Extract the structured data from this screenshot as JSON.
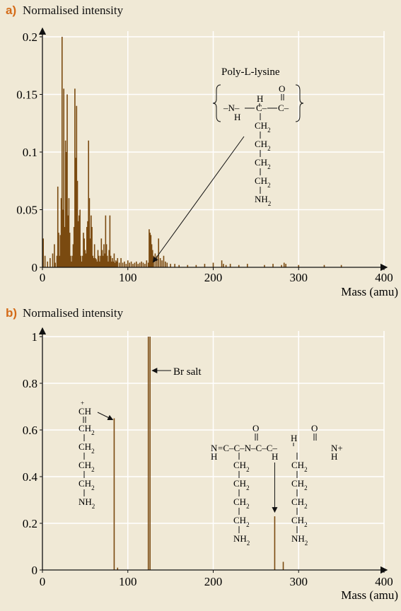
{
  "colors": {
    "background": "#f0e9d6",
    "bar": "#7a4a10",
    "gridline": "#ffffff",
    "panel_label": "#d46a17",
    "axis": "#111111"
  },
  "chart_data": [
    {
      "type": "bar",
      "panel_label": "a)",
      "title": "",
      "ylabel": "Normalised intensity",
      "xlabel": "Mass (amu)",
      "xlim": [
        0,
        400
      ],
      "ylim": [
        0,
        0.2
      ],
      "xticks": [
        "0",
        "100",
        "200",
        "300",
        "400"
      ],
      "yticks": [
        "0",
        "0.05",
        "0.1",
        "0.15",
        "0.2"
      ],
      "grid": true,
      "x": [
        1,
        3,
        6,
        9,
        12,
        14,
        15,
        17,
        18,
        19,
        20,
        21,
        22,
        23,
        24,
        25,
        26,
        27,
        28,
        29,
        30,
        31,
        32,
        33,
        34,
        35,
        36,
        37,
        38,
        39,
        40,
        41,
        42,
        43,
        44,
        45,
        46,
        47,
        48,
        49,
        50,
        51,
        52,
        53,
        54,
        55,
        56,
        57,
        58,
        59,
        60,
        61,
        62,
        63,
        64,
        65,
        66,
        67,
        68,
        69,
        70,
        71,
        72,
        73,
        74,
        75,
        76,
        77,
        78,
        79,
        80,
        81,
        82,
        83,
        84,
        85,
        86,
        87,
        88,
        90,
        92,
        94,
        96,
        98,
        100,
        102,
        104,
        106,
        108,
        110,
        112,
        114,
        116,
        118,
        120,
        122,
        124,
        125,
        126,
        127,
        128,
        129,
        130,
        132,
        134,
        136,
        138,
        140,
        142,
        144,
        146,
        150,
        155,
        160,
        170,
        180,
        190,
        200,
        210,
        212,
        215,
        220,
        230,
        240,
        260,
        270,
        280,
        283,
        285,
        300,
        330,
        350
      ],
      "values": [
        0.025,
        0.01,
        0.005,
        0.008,
        0.012,
        0.02,
        0.004,
        0.01,
        0.07,
        0.03,
        0.01,
        0.028,
        0.06,
        0.2,
        0.05,
        0.155,
        0.035,
        0.11,
        0.1,
        0.15,
        0.045,
        0.06,
        0.03,
        0.01,
        0.005,
        0.01,
        0.02,
        0.035,
        0.155,
        0.095,
        0.14,
        0.075,
        0.04,
        0.045,
        0.05,
        0.01,
        0.005,
        0.01,
        0.03,
        0.025,
        0.015,
        0.012,
        0.035,
        0.04,
        0.11,
        0.06,
        0.025,
        0.045,
        0.035,
        0.01,
        0.008,
        0.02,
        0.008,
        0.007,
        0.005,
        0.015,
        0.01,
        0.005,
        0.01,
        0.025,
        0.015,
        0.01,
        0.02,
        0.012,
        0.045,
        0.02,
        0.01,
        0.005,
        0.015,
        0.045,
        0.01,
        0.005,
        0.008,
        0.005,
        0.012,
        0.004,
        0.006,
        0.005,
        0.008,
        0.004,
        0.008,
        0.004,
        0.005,
        0.003,
        0.006,
        0.004,
        0.005,
        0.003,
        0.004,
        0.005,
        0.003,
        0.004,
        0.005,
        0.004,
        0.003,
        0.006,
        0.004,
        0.033,
        0.03,
        0.028,
        0.02,
        0.015,
        0.01,
        0.012,
        0.01,
        0.025,
        0.008,
        0.006,
        0.01,
        0.005,
        0.004,
        0.003,
        0.003,
        0.002,
        0.002,
        0.002,
        0.003,
        0.004,
        0.006,
        0.003,
        0.002,
        0.003,
        0.002,
        0.003,
        0.002,
        0.003,
        0.002,
        0.004,
        0.003,
        0.002,
        0.002,
        0.002
      ],
      "annotations": [
        {
          "text": "Poly-L-lysine",
          "target_x": 127,
          "target_y": 0.002
        }
      ],
      "structure_text": {
        "name": "Poly-L-lysine",
        "o": "O",
        "h": "H",
        "backbone_n": "–N–",
        "backbone_c": "C–",
        "carbonyl_c": "C–",
        "nh_h": "H",
        "ch2": "CH2",
        "nh2": "NH2"
      }
    },
    {
      "type": "bar",
      "panel_label": "b)",
      "title": "",
      "ylabel": "Normalised intensity",
      "xlabel": "Mass (amu)",
      "xlim": [
        0,
        400
      ],
      "ylim": [
        0,
        1
      ],
      "xticks": [
        "0",
        "100",
        "200",
        "300",
        "400"
      ],
      "yticks": [
        "0",
        "0.2",
        "0.4",
        "0.6",
        "0.8",
        "1"
      ],
      "grid": true,
      "x": [
        84,
        88,
        124,
        126,
        272,
        282
      ],
      "values": [
        0.65,
        0.01,
        1.0,
        1.0,
        0.23,
        0.035
      ],
      "annotations": [
        {
          "text": "Br salt",
          "target_x": 127,
          "target_y": 0.85
        },
        {
          "text": "CH",
          "target_x": 84,
          "target_y": 0.65
        },
        {
          "text": "",
          "target_x": 272,
          "target_y": 0.23
        }
      ],
      "structure_text": {
        "ch_plus": "+",
        "ch": "CH",
        "ch2": "CH2",
        "nh2": "NH2",
        "n_eq": "N",
        "h": "H",
        "o": "O",
        "nh_plus": "N+",
        "chain": "=C–C–N–C–C–"
      }
    }
  ]
}
